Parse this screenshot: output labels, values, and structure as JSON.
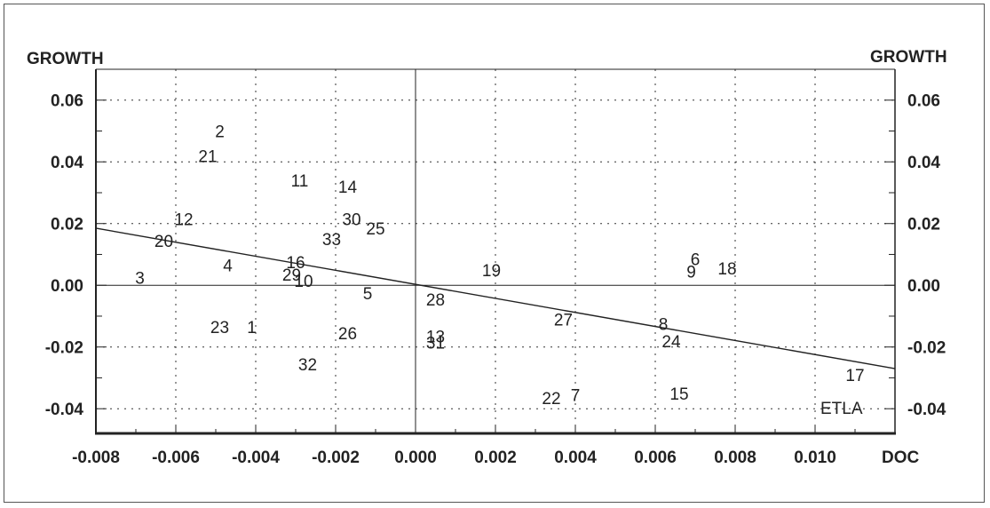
{
  "chart_data": {
    "type": "scatter",
    "left_axis_title": "GROWTH",
    "right_axis_title": "GROWTH",
    "x_axis_title": "DOC",
    "source_label": "ETLA",
    "xlim": [
      -0.008,
      0.012
    ],
    "ylim": [
      -0.048,
      0.07
    ],
    "x_ticks": [
      "-0.008",
      "-0.006",
      "-0.004",
      "-0.002",
      "0.000",
      "0.002",
      "0.004",
      "0.006",
      "0.008",
      "0.010"
    ],
    "y_ticks": [
      "-0.04",
      "-0.02",
      "0.00",
      "0.02",
      "0.04",
      "0.06"
    ],
    "grid": true,
    "zero_lines": true,
    "regression_line": {
      "x": [
        -0.008,
        0.012
      ],
      "y": [
        0.0185,
        -0.027
      ]
    },
    "points": [
      {
        "label": "1",
        "x": -0.0041,
        "y": -0.0135
      },
      {
        "label": "2",
        "x": -0.0049,
        "y": 0.05
      },
      {
        "label": "3",
        "x": -0.0069,
        "y": 0.0025
      },
      {
        "label": "4",
        "x": -0.0047,
        "y": 0.0065
      },
      {
        "label": "5",
        "x": -0.0012,
        "y": -0.0025
      },
      {
        "label": "6",
        "x": 0.007,
        "y": 0.0085
      },
      {
        "label": "7",
        "x": 0.004,
        "y": -0.0355
      },
      {
        "label": "8",
        "x": 0.0062,
        "y": -0.0125
      },
      {
        "label": "9",
        "x": 0.0069,
        "y": 0.0045
      },
      {
        "label": "10",
        "x": -0.0028,
        "y": 0.0015
      },
      {
        "label": "11",
        "x": -0.0029,
        "y": 0.034
      },
      {
        "label": "12",
        "x": -0.0058,
        "y": 0.0215
      },
      {
        "label": "13",
        "x": 0.0005,
        "y": -0.0165
      },
      {
        "label": "14",
        "x": -0.0017,
        "y": 0.032
      },
      {
        "label": "15",
        "x": 0.0066,
        "y": -0.035
      },
      {
        "label": "16",
        "x": -0.003,
        "y": 0.0075
      },
      {
        "label": "17",
        "x": 0.011,
        "y": -0.029
      },
      {
        "label": "18",
        "x": 0.0078,
        "y": 0.0055
      },
      {
        "label": "19",
        "x": 0.0019,
        "y": 0.005
      },
      {
        "label": "20",
        "x": -0.0063,
        "y": 0.0145
      },
      {
        "label": "21",
        "x": -0.0052,
        "y": 0.042
      },
      {
        "label": "22",
        "x": 0.0034,
        "y": -0.0365
      },
      {
        "label": "23",
        "x": -0.0049,
        "y": -0.0135
      },
      {
        "label": "24",
        "x": 0.0064,
        "y": -0.018
      },
      {
        "label": "25",
        "x": -0.001,
        "y": 0.0185
      },
      {
        "label": "26",
        "x": -0.0017,
        "y": -0.0155
      },
      {
        "label": "27",
        "x": 0.0037,
        "y": -0.011
      },
      {
        "label": "28",
        "x": 0.0005,
        "y": -0.0045
      },
      {
        "label": "29",
        "x": -0.0031,
        "y": 0.0035
      },
      {
        "label": "30",
        "x": -0.0016,
        "y": 0.0215
      },
      {
        "label": "31",
        "x": 0.0005,
        "y": -0.0185
      },
      {
        "label": "32",
        "x": -0.0027,
        "y": -0.0255
      },
      {
        "label": "33",
        "x": -0.0021,
        "y": 0.015
      }
    ]
  }
}
